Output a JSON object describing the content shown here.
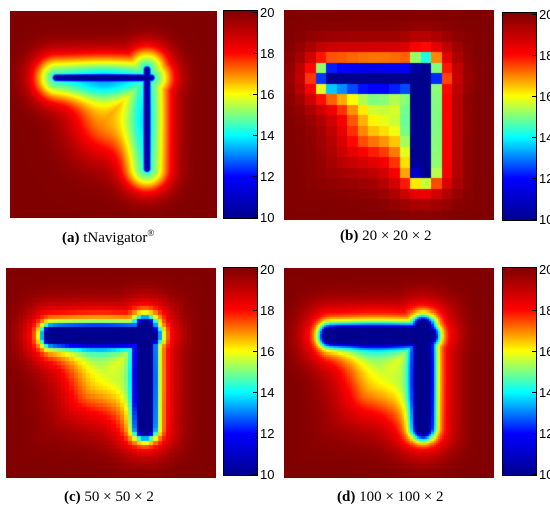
{
  "chart_data": [
    {
      "type": "heatmap",
      "panel_label": "(a)",
      "caption": "tNavigator",
      "caption_sup": "®",
      "style": "smooth",
      "grid": 0,
      "colorbar": {
        "min": 10,
        "max": 20,
        "ticks": [
          20,
          18,
          16,
          14,
          12,
          10
        ]
      }
    },
    {
      "type": "heatmap",
      "panel_label": "(b)",
      "caption": "20 × 20 × 2",
      "style": "blocky",
      "grid": 20,
      "colorbar": {
        "min": 10,
        "max": 20,
        "ticks": [
          20,
          18,
          16,
          14,
          12,
          10
        ]
      }
    },
    {
      "type": "heatmap",
      "panel_label": "(c)",
      "caption": "50 × 50 × 2",
      "style": "blocky",
      "grid": 50,
      "colorbar": {
        "min": 10,
        "max": 20,
        "ticks": [
          20,
          18,
          16,
          14,
          12,
          10
        ]
      }
    },
    {
      "type": "heatmap",
      "panel_label": "(d)",
      "caption": "100 × 100 × 2",
      "style": "blocky",
      "grid": 100,
      "colorbar": {
        "min": 10,
        "max": 20,
        "ticks": [
          20,
          18,
          16,
          14,
          12,
          10
        ]
      }
    }
  ],
  "colormap": [
    "#00008f",
    "#0000ff",
    "#00ffff",
    "#ffff00",
    "#ff0000",
    "#800000"
  ]
}
